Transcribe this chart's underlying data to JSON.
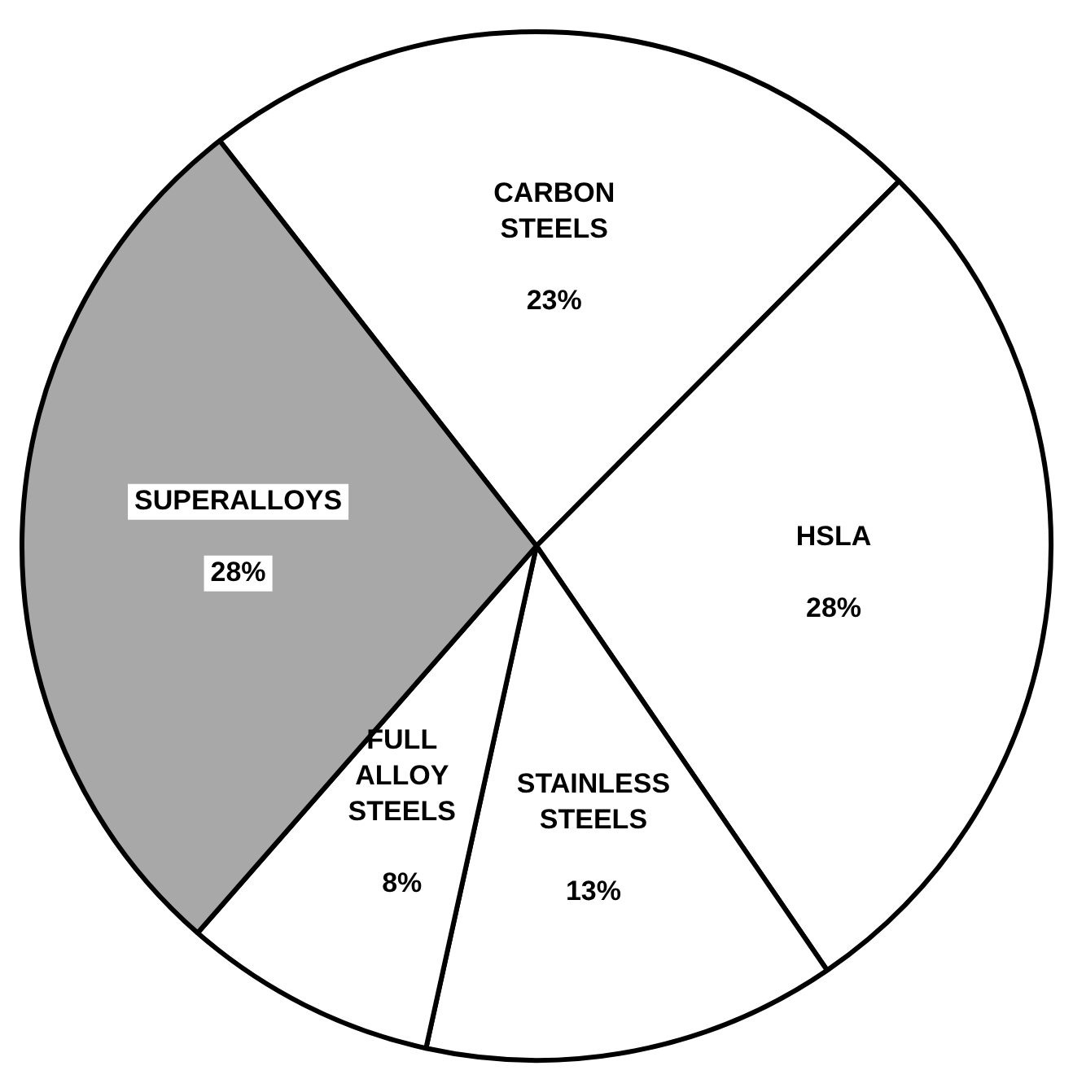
{
  "chart_data": {
    "type": "pie",
    "categories": [
      "CARBON STEELS",
      "HSLA",
      "STAINLESS STEELS",
      "FULL ALLOY STEELS",
      "SUPERALLOYS"
    ],
    "values": [
      23,
      28,
      13,
      8,
      28
    ],
    "value_labels": [
      "23%",
      "28%",
      "13%",
      "8%",
      "28%"
    ],
    "colors": [
      "#ffffff",
      "#ffffff",
      "#ffffff",
      "#ffffff",
      "#a8a8a8"
    ],
    "legend": false
  }
}
